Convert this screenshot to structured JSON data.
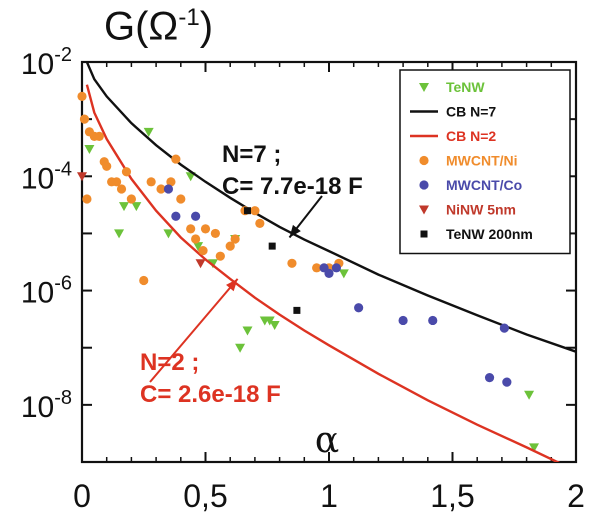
{
  "chart_data": {
    "type": "scatter",
    "title": "",
    "ylabel_text": "G(Ω",
    "ylabel_sup": "-1",
    "ylabel_close": ")",
    "xlabel": "α",
    "xlim": [
      0,
      2
    ],
    "ylim": [
      1e-09,
      0.01
    ],
    "yscale": "log",
    "grid": false,
    "legend_position": "top-right",
    "x_ticks": [
      {
        "value": 0,
        "label": "0"
      },
      {
        "value": 0.5,
        "label": "0,5"
      },
      {
        "value": 1,
        "label": "1"
      },
      {
        "value": 1.5,
        "label": "1,5"
      },
      {
        "value": 2,
        "label": "2"
      }
    ],
    "y_ticks": [
      {
        "value": 0.01,
        "base": "10",
        "exp": "-2"
      },
      {
        "value": 0.0001,
        "base": "10",
        "exp": "-4"
      },
      {
        "value": 1e-06,
        "base": "10",
        "exp": "-6"
      },
      {
        "value": 1e-08,
        "base": "10",
        "exp": "-8"
      }
    ],
    "series": [
      {
        "name": "TeNW",
        "kind": "scatter",
        "marker": "triangle-down",
        "color": "#6cc23a",
        "points": [
          [
            0.03,
            0.0003
          ],
          [
            0.17,
            3e-05
          ],
          [
            0.22,
            3e-05
          ],
          [
            0.15,
            1e-05
          ],
          [
            0.27,
            0.0006
          ],
          [
            0.35,
            1e-05
          ],
          [
            0.44,
            0.0001
          ],
          [
            0.47,
            6e-06
          ],
          [
            0.53,
            3e-06
          ],
          [
            0.62,
            8e-06
          ],
          [
            0.64,
            1e-07
          ],
          [
            0.67,
            2e-07
          ],
          [
            0.74,
            3e-07
          ],
          [
            0.76,
            3e-07
          ],
          [
            0.78,
            2.5e-07
          ],
          [
            1.06,
            2e-06
          ],
          [
            1.81,
            1.5e-08
          ],
          [
            1.83,
            1.8e-09
          ]
        ]
      },
      {
        "name": "CB N=7",
        "kind": "line",
        "color": "#111111",
        "points": [
          [
            0.02,
            0.01
          ],
          [
            0.05,
            0.005
          ],
          [
            0.1,
            0.0025
          ],
          [
            0.2,
            0.00085
          ],
          [
            0.3,
            0.00035
          ],
          [
            0.4,
            0.00016
          ],
          [
            0.5,
            8e-05
          ],
          [
            0.6,
            4.2e-05
          ],
          [
            0.7,
            2.3e-05
          ],
          [
            0.8,
            1.3e-05
          ],
          [
            0.9,
            7.8e-06
          ],
          [
            1,
            4.9e-06
          ],
          [
            1.2,
            1.9e-06
          ],
          [
            1.4,
            8.2e-07
          ],
          [
            1.6,
            3.7e-07
          ],
          [
            1.8,
            1.7e-07
          ],
          [
            2,
            8.5e-08
          ]
        ]
      },
      {
        "name": "CB N=2",
        "kind": "line",
        "color": "#dd3322",
        "points": [
          [
            0.02,
            0.004
          ],
          [
            0.05,
            0.0013
          ],
          [
            0.1,
            0.00045
          ],
          [
            0.2,
            9e-05
          ],
          [
            0.3,
            2.5e-05
          ],
          [
            0.4,
            8.5e-06
          ],
          [
            0.5,
            3.5e-06
          ],
          [
            0.6,
            1.6e-06
          ],
          [
            0.7,
            7.5e-07
          ],
          [
            0.8,
            3.8e-07
          ],
          [
            0.9,
            2e-07
          ],
          [
            1,
            1.1e-07
          ],
          [
            1.2,
            3.5e-08
          ],
          [
            1.4,
            1.2e-08
          ],
          [
            1.6,
            4.5e-09
          ],
          [
            1.8,
            1.8e-09
          ],
          [
            2,
            7e-10
          ]
        ]
      },
      {
        "name": "MWCNT/Ni",
        "kind": "scatter",
        "marker": "circle",
        "color": "#f08c2c",
        "points": [
          [
            0.0,
            0.0025
          ],
          [
            0.01,
            0.001
          ],
          [
            0.03,
            0.0006
          ],
          [
            0.05,
            0.0005
          ],
          [
            0.07,
            0.0005
          ],
          [
            0.09,
            0.00018
          ],
          [
            0.1,
            0.00015
          ],
          [
            0.12,
            8e-05
          ],
          [
            0.14,
            8e-05
          ],
          [
            0.16,
            6e-05
          ],
          [
            0.18,
            0.00012
          ],
          [
            0.2,
            4e-05
          ],
          [
            0.02,
            4e-05
          ],
          [
            0.25,
            1.5e-06
          ],
          [
            0.28,
            8e-05
          ],
          [
            0.32,
            6e-05
          ],
          [
            0.36,
            8e-05
          ],
          [
            0.38,
            0.0002
          ],
          [
            0.4,
            4e-05
          ],
          [
            0.44,
            1.2e-05
          ],
          [
            0.46,
            8e-06
          ],
          [
            0.5,
            1.2e-05
          ],
          [
            0.54,
            1e-05
          ],
          [
            0.56,
            4e-06
          ],
          [
            0.6,
            6e-06
          ],
          [
            0.62,
            8e-06
          ],
          [
            0.66,
            2.5e-05
          ],
          [
            0.7,
            2.5e-05
          ],
          [
            0.72,
            1.5e-05
          ],
          [
            0.85,
            3e-06
          ],
          [
            0.95,
            2.5e-06
          ],
          [
            1.0,
            2.5e-06
          ],
          [
            1.04,
            3e-06
          ],
          [
            0.49,
            5e-06
          ]
        ]
      },
      {
        "name": "MWCNT/Co",
        "kind": "scatter",
        "marker": "circle",
        "color": "#4a4aaa",
        "points": [
          [
            0.35,
            6e-05
          ],
          [
            0.38,
            2e-05
          ],
          [
            0.46,
            2e-05
          ],
          [
            0.98,
            2.5e-06
          ],
          [
            1.0,
            2e-06
          ],
          [
            1.03,
            2.5e-06
          ],
          [
            1.12,
            5e-07
          ],
          [
            1.3,
            3e-07
          ],
          [
            1.42,
            3e-07
          ],
          [
            1.65,
            3e-08
          ],
          [
            1.71,
            2.2e-07
          ],
          [
            1.72,
            2.5e-08
          ]
        ]
      },
      {
        "name": "NiNW 5nm",
        "kind": "scatter",
        "marker": "triangle-down",
        "color": "#c0392b",
        "points": [
          [
            0.0,
            0.0001
          ],
          [
            0.48,
            3e-06
          ]
        ]
      },
      {
        "name": "TeNW 200nm",
        "kind": "scatter",
        "marker": "square",
        "color": "#111111",
        "points": [
          [
            0.67,
            2.5e-05
          ],
          [
            0.77,
            6e-06
          ],
          [
            0.87,
            4.5e-07
          ]
        ]
      }
    ],
    "annotations": [
      {
        "id": "n7",
        "lines": [
          "N=7 ;",
          "C= 7.7e-18 F"
        ],
        "color": "#111111",
        "arrow_to": [
          0.84,
          8.5e-06
        ]
      },
      {
        "id": "n2",
        "lines": [
          "N=2 ;",
          "C= 2.6e-18 F"
        ],
        "color": "#dd3322",
        "arrow_to": [
          0.63,
          1.6e-06
        ]
      }
    ]
  }
}
